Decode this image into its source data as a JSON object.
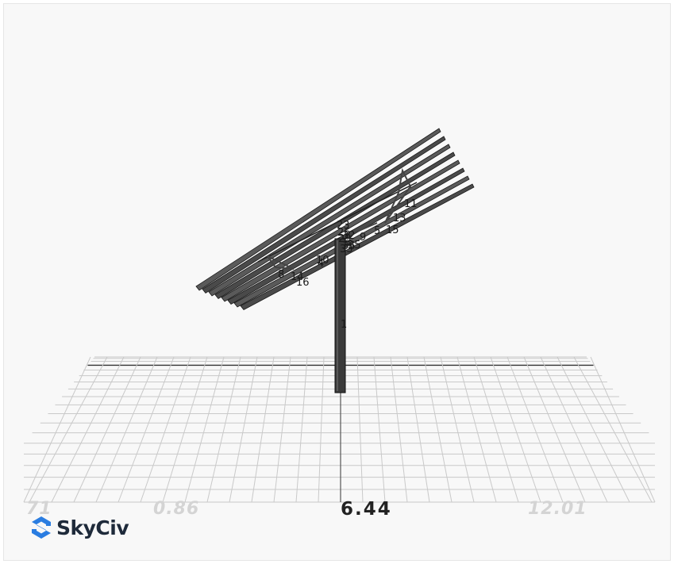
{
  "viewer": {
    "axis_labels": [
      "71",
      "0.86",
      "6.44",
      "12.01"
    ]
  },
  "brand": {
    "name": "SkyCiv",
    "icon": "skyciv-logo-icon"
  },
  "model": {
    "node_labels": [
      "1",
      "4",
      "5",
      "6",
      "8",
      "9",
      "10",
      "11",
      "13",
      "14",
      "15",
      "16",
      "23",
      "26",
      "29",
      "32",
      "33",
      "35",
      "36"
    ]
  },
  "colors": {
    "background": "#f8f8f8",
    "grid": "#c9c9c9",
    "member": "#3a3a3a",
    "brand_blue": "#2a7de1"
  }
}
